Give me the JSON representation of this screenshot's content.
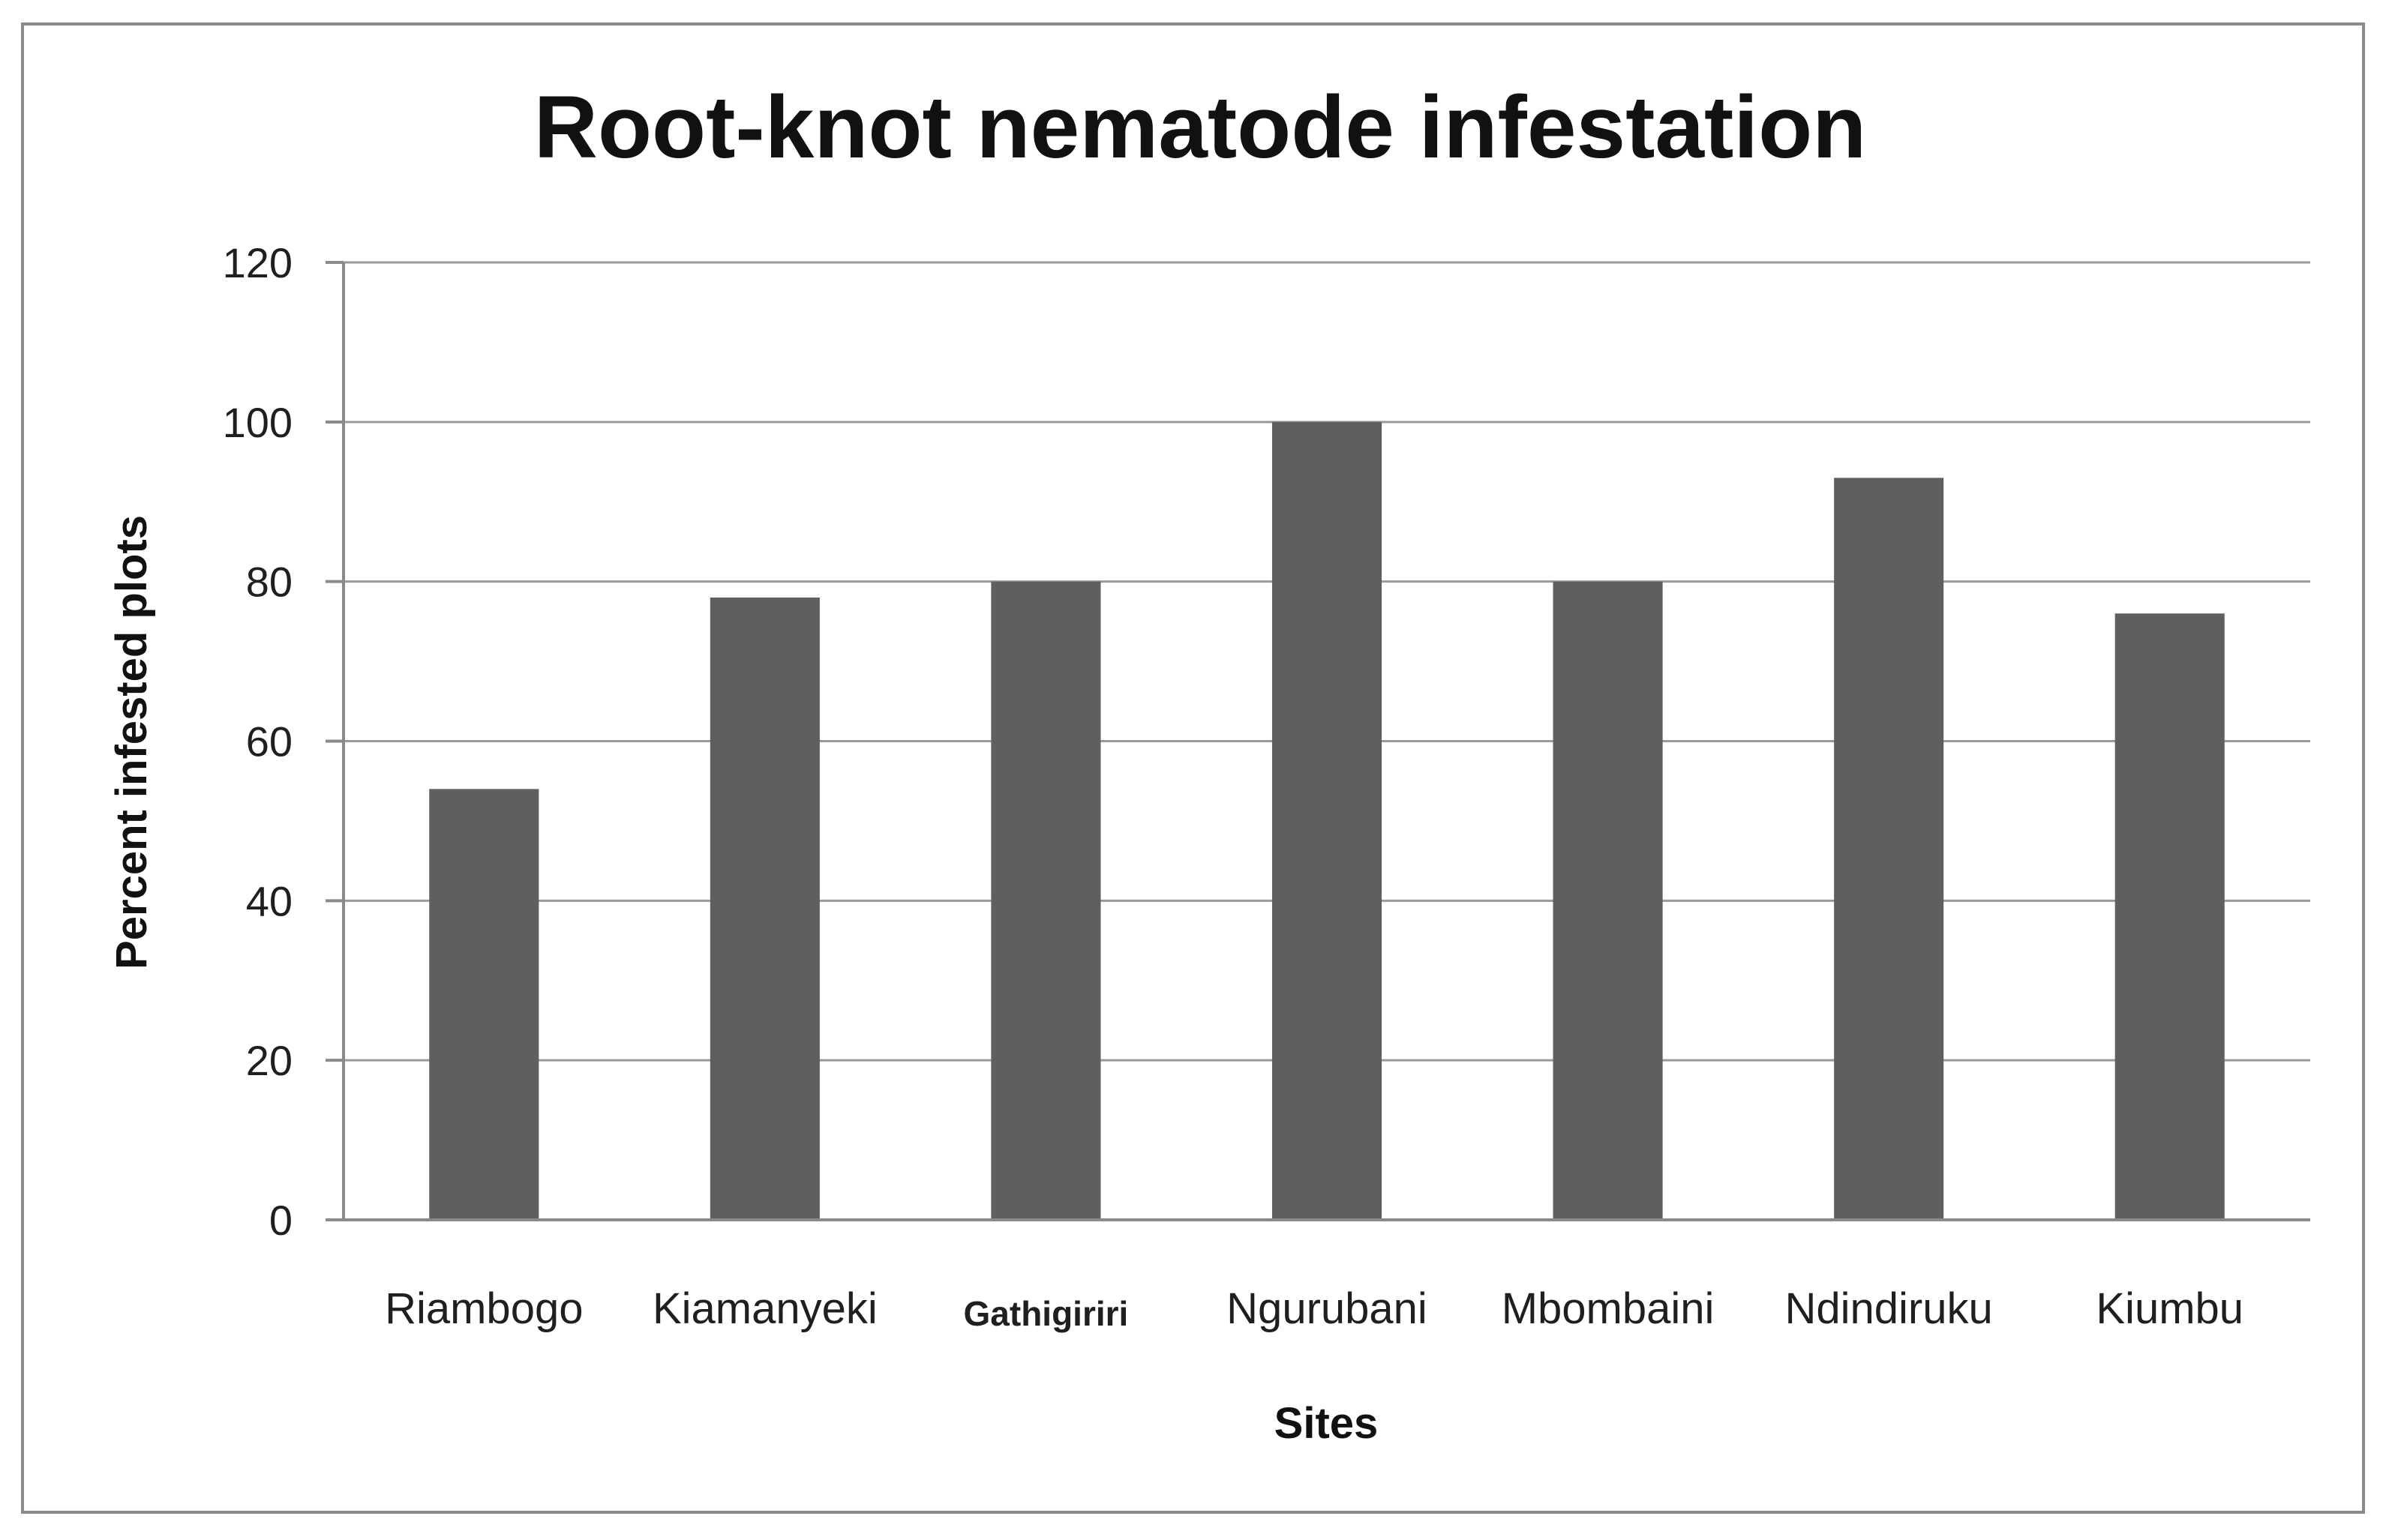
{
  "chart_data": {
    "type": "bar",
    "title": "Root-knot nematode infestation",
    "xlabel": "Sites",
    "ylabel": "Percent infested plots",
    "categories": [
      "Riambogo",
      "Kiamanyeki",
      "Gathigiriri",
      "Ngurubani",
      "Mbombaini",
      "Ndindiruku",
      "Kiumbu"
    ],
    "values": [
      54,
      78,
      80,
      100,
      80,
      93,
      76
    ],
    "ylim": [
      0,
      120
    ],
    "yticks": [
      0,
      20,
      40,
      60,
      80,
      100,
      120
    ],
    "ytick_labels": [
      "0",
      "20",
      "40",
      "60",
      "80",
      "100",
      "120"
    ],
    "grid": true,
    "legend": "none",
    "colors": {
      "bar": "#5f5f5f",
      "grid": "#9a9a9a",
      "border": "#8a8a8a",
      "text": "#1f1f1f"
    }
  }
}
